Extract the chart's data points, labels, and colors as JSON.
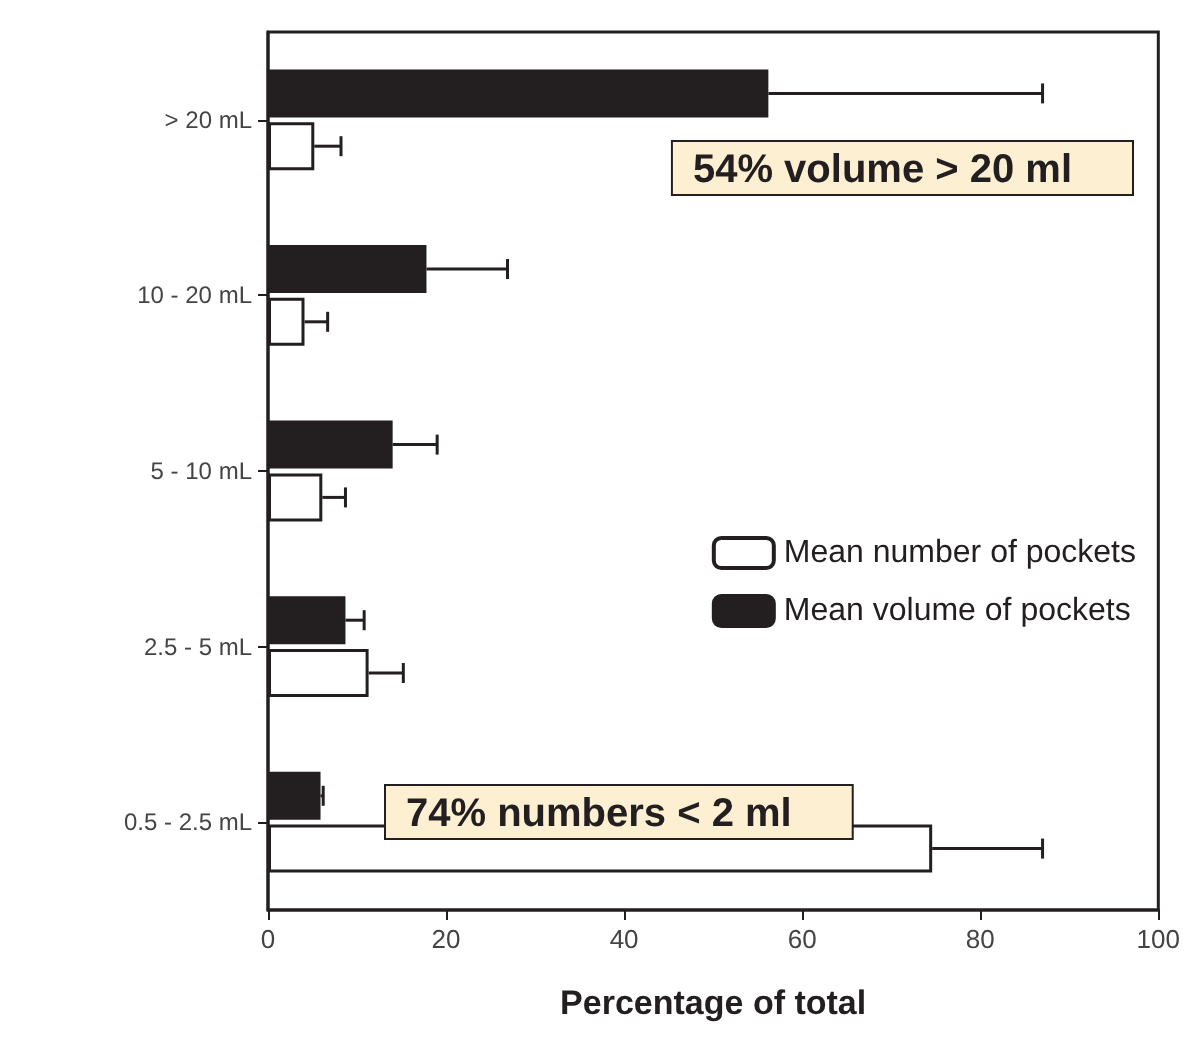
{
  "chart_data": {
    "type": "bar",
    "orientation": "horizontal",
    "xlabel": "Percentage of total",
    "categories": [
      "> 20 mL",
      "10 - 20 mL",
      "5 - 10 mL",
      "2.5 - 5 mL",
      "0.5 - 2.5 mL"
    ],
    "series": [
      {
        "name": "Mean volume of pockets",
        "color": "#231f20",
        "values": [
          56.2,
          17.8,
          14,
          8.7,
          5.9
        ],
        "errors": [
          [
            56.2,
            87
          ],
          [
            17.8,
            26.9
          ],
          [
            14,
            19
          ],
          [
            8.7,
            10.8
          ],
          [
            5.9,
            6.2
          ]
        ]
      },
      {
        "name": "Mean number of pockets",
        "color": "#ffffff",
        "values": [
          5.2,
          4.1,
          6.1,
          11.3,
          74.6
        ],
        "errors": [
          [
            5.2,
            8.2
          ],
          [
            4.1,
            6.7
          ],
          [
            6.1,
            8.7
          ],
          [
            11.3,
            15.2
          ],
          [
            74.6,
            87
          ]
        ]
      }
    ],
    "xlim": [
      0,
      100
    ],
    "xticks": [
      0,
      20,
      40,
      60,
      80,
      100
    ],
    "grid": false,
    "legend": "right",
    "annotations": [
      "54% volume > 20 ml",
      "74% numbers < 2 ml"
    ]
  }
}
